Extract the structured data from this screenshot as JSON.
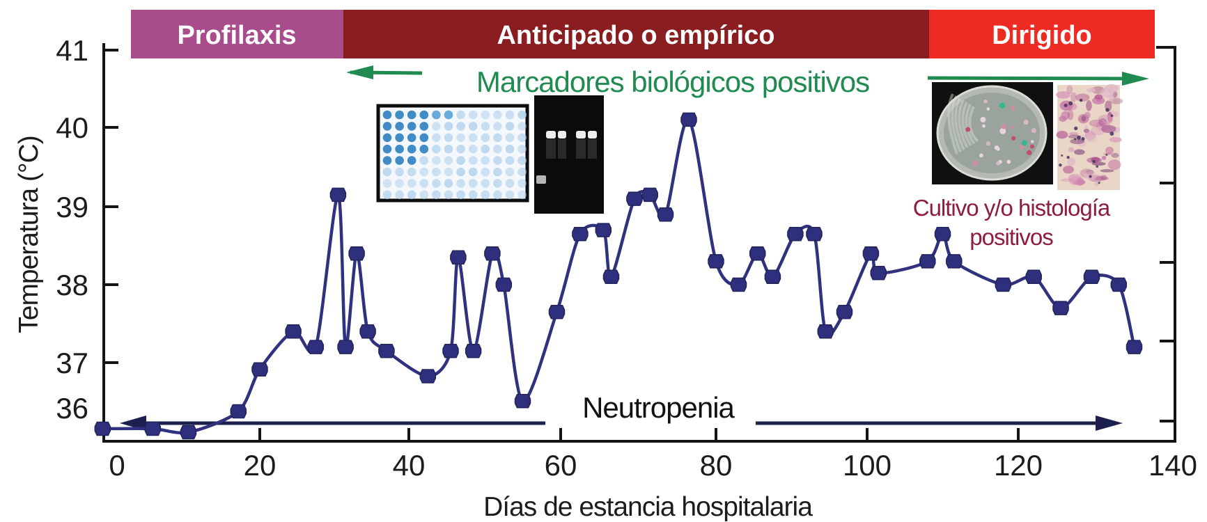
{
  "figure": {
    "phases": [
      {
        "label": "Profilaxis",
        "color": "#a84c8c"
      },
      {
        "label": "Anticipado o empírico",
        "color": "#891d1f"
      },
      {
        "label": "Dirigido",
        "color": "#ee2b22"
      }
    ],
    "annotations": {
      "biomarkers_text": "Marcadores biológicos positivos",
      "biomarkers_color": "#1f8b50",
      "neutropenia_text": "Neutropenia",
      "neutropenia_arrow_color": "#1d1f4e",
      "culture_line1": "Cultivo y/o histología",
      "culture_line2": "positivos",
      "culture_color": "#8e1c3c"
    }
  },
  "chart_data": {
    "type": "line",
    "title": "",
    "xlabel": "Días de estancia hospitalaria",
    "ylabel": "Temperatura (°C)",
    "x_ticks": [
      0,
      20,
      40,
      60,
      80,
      100,
      120,
      140
    ],
    "y_ticks": [
      36,
      37,
      38,
      39,
      40,
      41
    ],
    "xlim": [
      -3,
      143
    ],
    "ylim": [
      35.6,
      41
    ],
    "grid": false,
    "legend": "none",
    "series_color": "#31327f",
    "marker_color": "#2e2f7d",
    "points": [
      [
        -2,
        35.7
      ],
      [
        5,
        35.7
      ],
      [
        10,
        35.65
      ],
      [
        17,
        35.95
      ],
      [
        20,
        36.85
      ],
      [
        24.5,
        37.4
      ],
      [
        27.5,
        37.2
      ],
      [
        30.5,
        39.15
      ],
      [
        31.5,
        37.2
      ],
      [
        33,
        38.4
      ],
      [
        34.5,
        37.4
      ],
      [
        37,
        37.15
      ],
      [
        42.5,
        36.7
      ],
      [
        45.5,
        37.15
      ],
      [
        46.5,
        38.35
      ],
      [
        48.5,
        37.15
      ],
      [
        51,
        38.4
      ],
      [
        52.5,
        38.0
      ],
      [
        55,
        36.15
      ],
      [
        59.5,
        37.65
      ],
      [
        62.5,
        38.65
      ],
      [
        65.5,
        38.7
      ],
      [
        66.5,
        38.1
      ],
      [
        69.5,
        39.1
      ],
      [
        71.5,
        39.15
      ],
      [
        73.5,
        38.9
      ],
      [
        76.5,
        40.1
      ],
      [
        80,
        38.3
      ],
      [
        83,
        38.0
      ],
      [
        85.5,
        38.4
      ],
      [
        87.5,
        38.1
      ],
      [
        90.5,
        38.65
      ],
      [
        93,
        38.65
      ],
      [
        94.5,
        37.4
      ],
      [
        97,
        37.65
      ],
      [
        100.5,
        38.4
      ],
      [
        101.5,
        38.15
      ],
      [
        108,
        38.3
      ],
      [
        110,
        38.65
      ],
      [
        111.5,
        38.3
      ],
      [
        118,
        38.0
      ],
      [
        122,
        38.1
      ],
      [
        125.5,
        37.7
      ],
      [
        129.5,
        38.1
      ],
      [
        133,
        38.0
      ],
      [
        135,
        37.2
      ]
    ]
  },
  "insets": {
    "microplate": {
      "name": "elisa-microplate",
      "rows": 8,
      "cols": 12,
      "dark_cols_per_row": [
        6,
        4,
        4,
        4,
        3,
        0,
        0,
        0
      ],
      "dark_color": "#2e7fc0",
      "mid_color": "#5aa0d8",
      "light_color": "#b2d2ec"
    },
    "gel": {
      "name": "pcr-gel",
      "band_count": 4
    },
    "petri": {
      "name": "culture-plate"
    },
    "histology": {
      "name": "histology-stain"
    }
  }
}
